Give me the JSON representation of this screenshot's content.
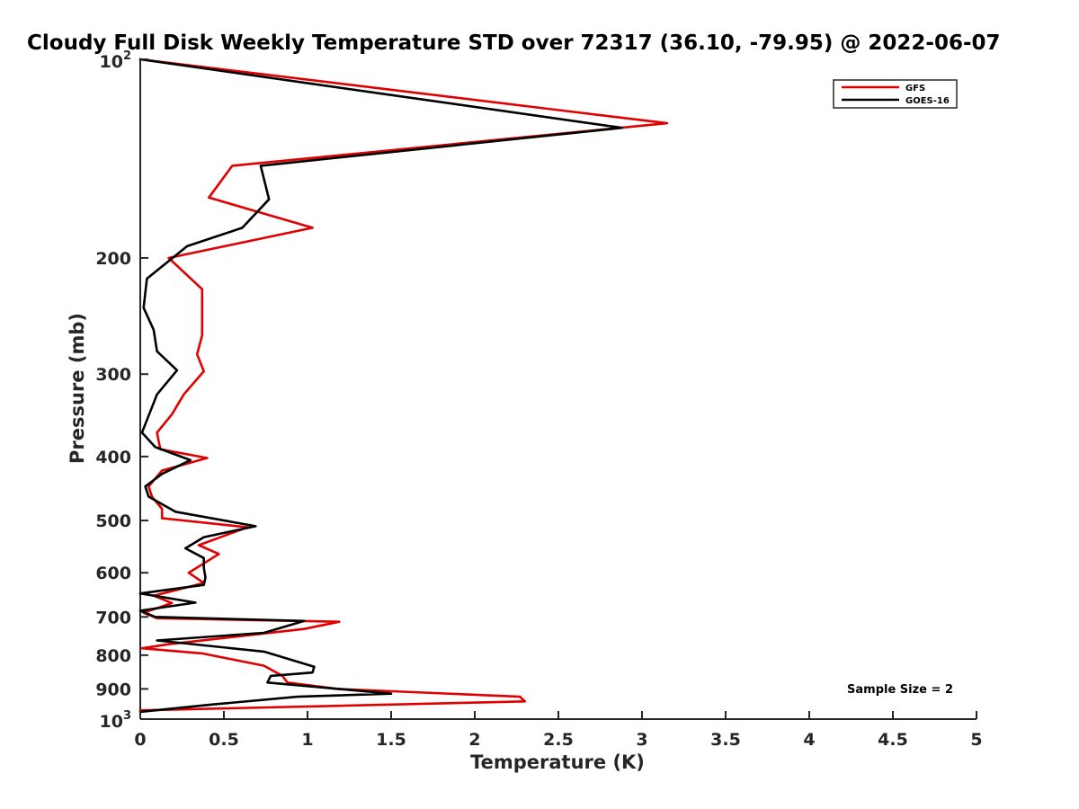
{
  "chart_data": {
    "type": "line",
    "title": "Cloudy Full Disk Weekly Temperature STD over 72317 (36.10, -79.95) @ 2022-06-07",
    "xlabel": "Temperature (K)",
    "ylabel": "Pressure (mb)",
    "xlim": [
      0,
      5
    ],
    "ylim": [
      100,
      1000
    ],
    "y_scale": "log",
    "y_reversed": true,
    "x_ticks": [
      {
        "value": 0,
        "label": "0"
      },
      {
        "value": 0.5,
        "label": "0.5"
      },
      {
        "value": 1,
        "label": "1"
      },
      {
        "value": 1.5,
        "label": "1.5"
      },
      {
        "value": 2,
        "label": "2"
      },
      {
        "value": 2.5,
        "label": "2.5"
      },
      {
        "value": 3,
        "label": "3"
      },
      {
        "value": 3.5,
        "label": "3.5"
      },
      {
        "value": 4,
        "label": "4"
      },
      {
        "value": 4.5,
        "label": "4.5"
      },
      {
        "value": 5,
        "label": "5"
      }
    ],
    "y_ticks": [
      {
        "value": 100,
        "base": "10",
        "exp": "2"
      },
      {
        "value": 200,
        "label": "200"
      },
      {
        "value": 300,
        "label": "300"
      },
      {
        "value": 400,
        "label": "400"
      },
      {
        "value": 500,
        "label": "500"
      },
      {
        "value": 600,
        "label": "600"
      },
      {
        "value": 700,
        "label": "700"
      },
      {
        "value": 800,
        "label": "800"
      },
      {
        "value": 900,
        "label": "900"
      },
      {
        "value": 1000,
        "base": "10",
        "exp": "3"
      }
    ],
    "legend_position": "top-right",
    "annotation": "Sample Size = 2",
    "grid": false,
    "series": [
      {
        "name": "GFS",
        "color": "#e00000",
        "x": [
          0.0,
          3.15,
          0.55,
          0.41,
          1.03,
          0.17,
          0.37,
          0.37,
          0.37,
          0.34,
          0.38,
          0.26,
          0.19,
          0.1,
          0.12,
          0.4,
          0.13,
          0.05,
          0.07,
          0.13,
          0.13,
          0.64,
          0.35,
          0.47,
          0.29,
          0.38,
          0.08,
          0.19,
          0.02,
          0.1,
          1.19,
          0.98,
          0.17,
          0.01,
          0.37,
          0.74,
          0.85,
          0.88,
          1.18,
          2.27,
          2.3,
          0.0
        ],
        "y": [
          100,
          125,
          145,
          162,
          180,
          200,
          223,
          243,
          262,
          280,
          297,
          322,
          345,
          368,
          390,
          402,
          420,
          444,
          460,
          480,
          496,
          512,
          545,
          562,
          600,
          622,
          650,
          667,
          690,
          703,
          712,
          730,
          770,
          781,
          795,
          830,
          860,
          880,
          900,
          925,
          940,
          970
        ]
      },
      {
        "name": "GOES-16",
        "color": "#000000",
        "x": [
          0.0,
          2.88,
          0.72,
          0.77,
          0.61,
          0.28,
          0.04,
          0.02,
          0.08,
          0.1,
          0.22,
          0.1,
          0.01,
          0.09,
          0.3,
          0.13,
          0.03,
          0.05,
          0.21,
          0.69,
          0.38,
          0.27,
          0.38,
          0.38,
          0.39,
          0.38,
          0.0,
          0.33,
          0.0,
          0.09,
          0.98,
          0.74,
          0.1,
          0.74,
          1.04,
          1.03,
          0.78,
          0.76,
          1.5,
          0.94,
          0.44,
          0.0
        ],
        "y": [
          100,
          127,
          145,
          163,
          180,
          192,
          215,
          238,
          257,
          277,
          296,
          322,
          368,
          387,
          405,
          425,
          444,
          460,
          485,
          510,
          530,
          551,
          570,
          590,
          610,
          626,
          645,
          666,
          685,
          700,
          710,
          740,
          760,
          790,
          833,
          850,
          860,
          880,
          915,
          925,
          950,
          975
        ]
      }
    ]
  }
}
